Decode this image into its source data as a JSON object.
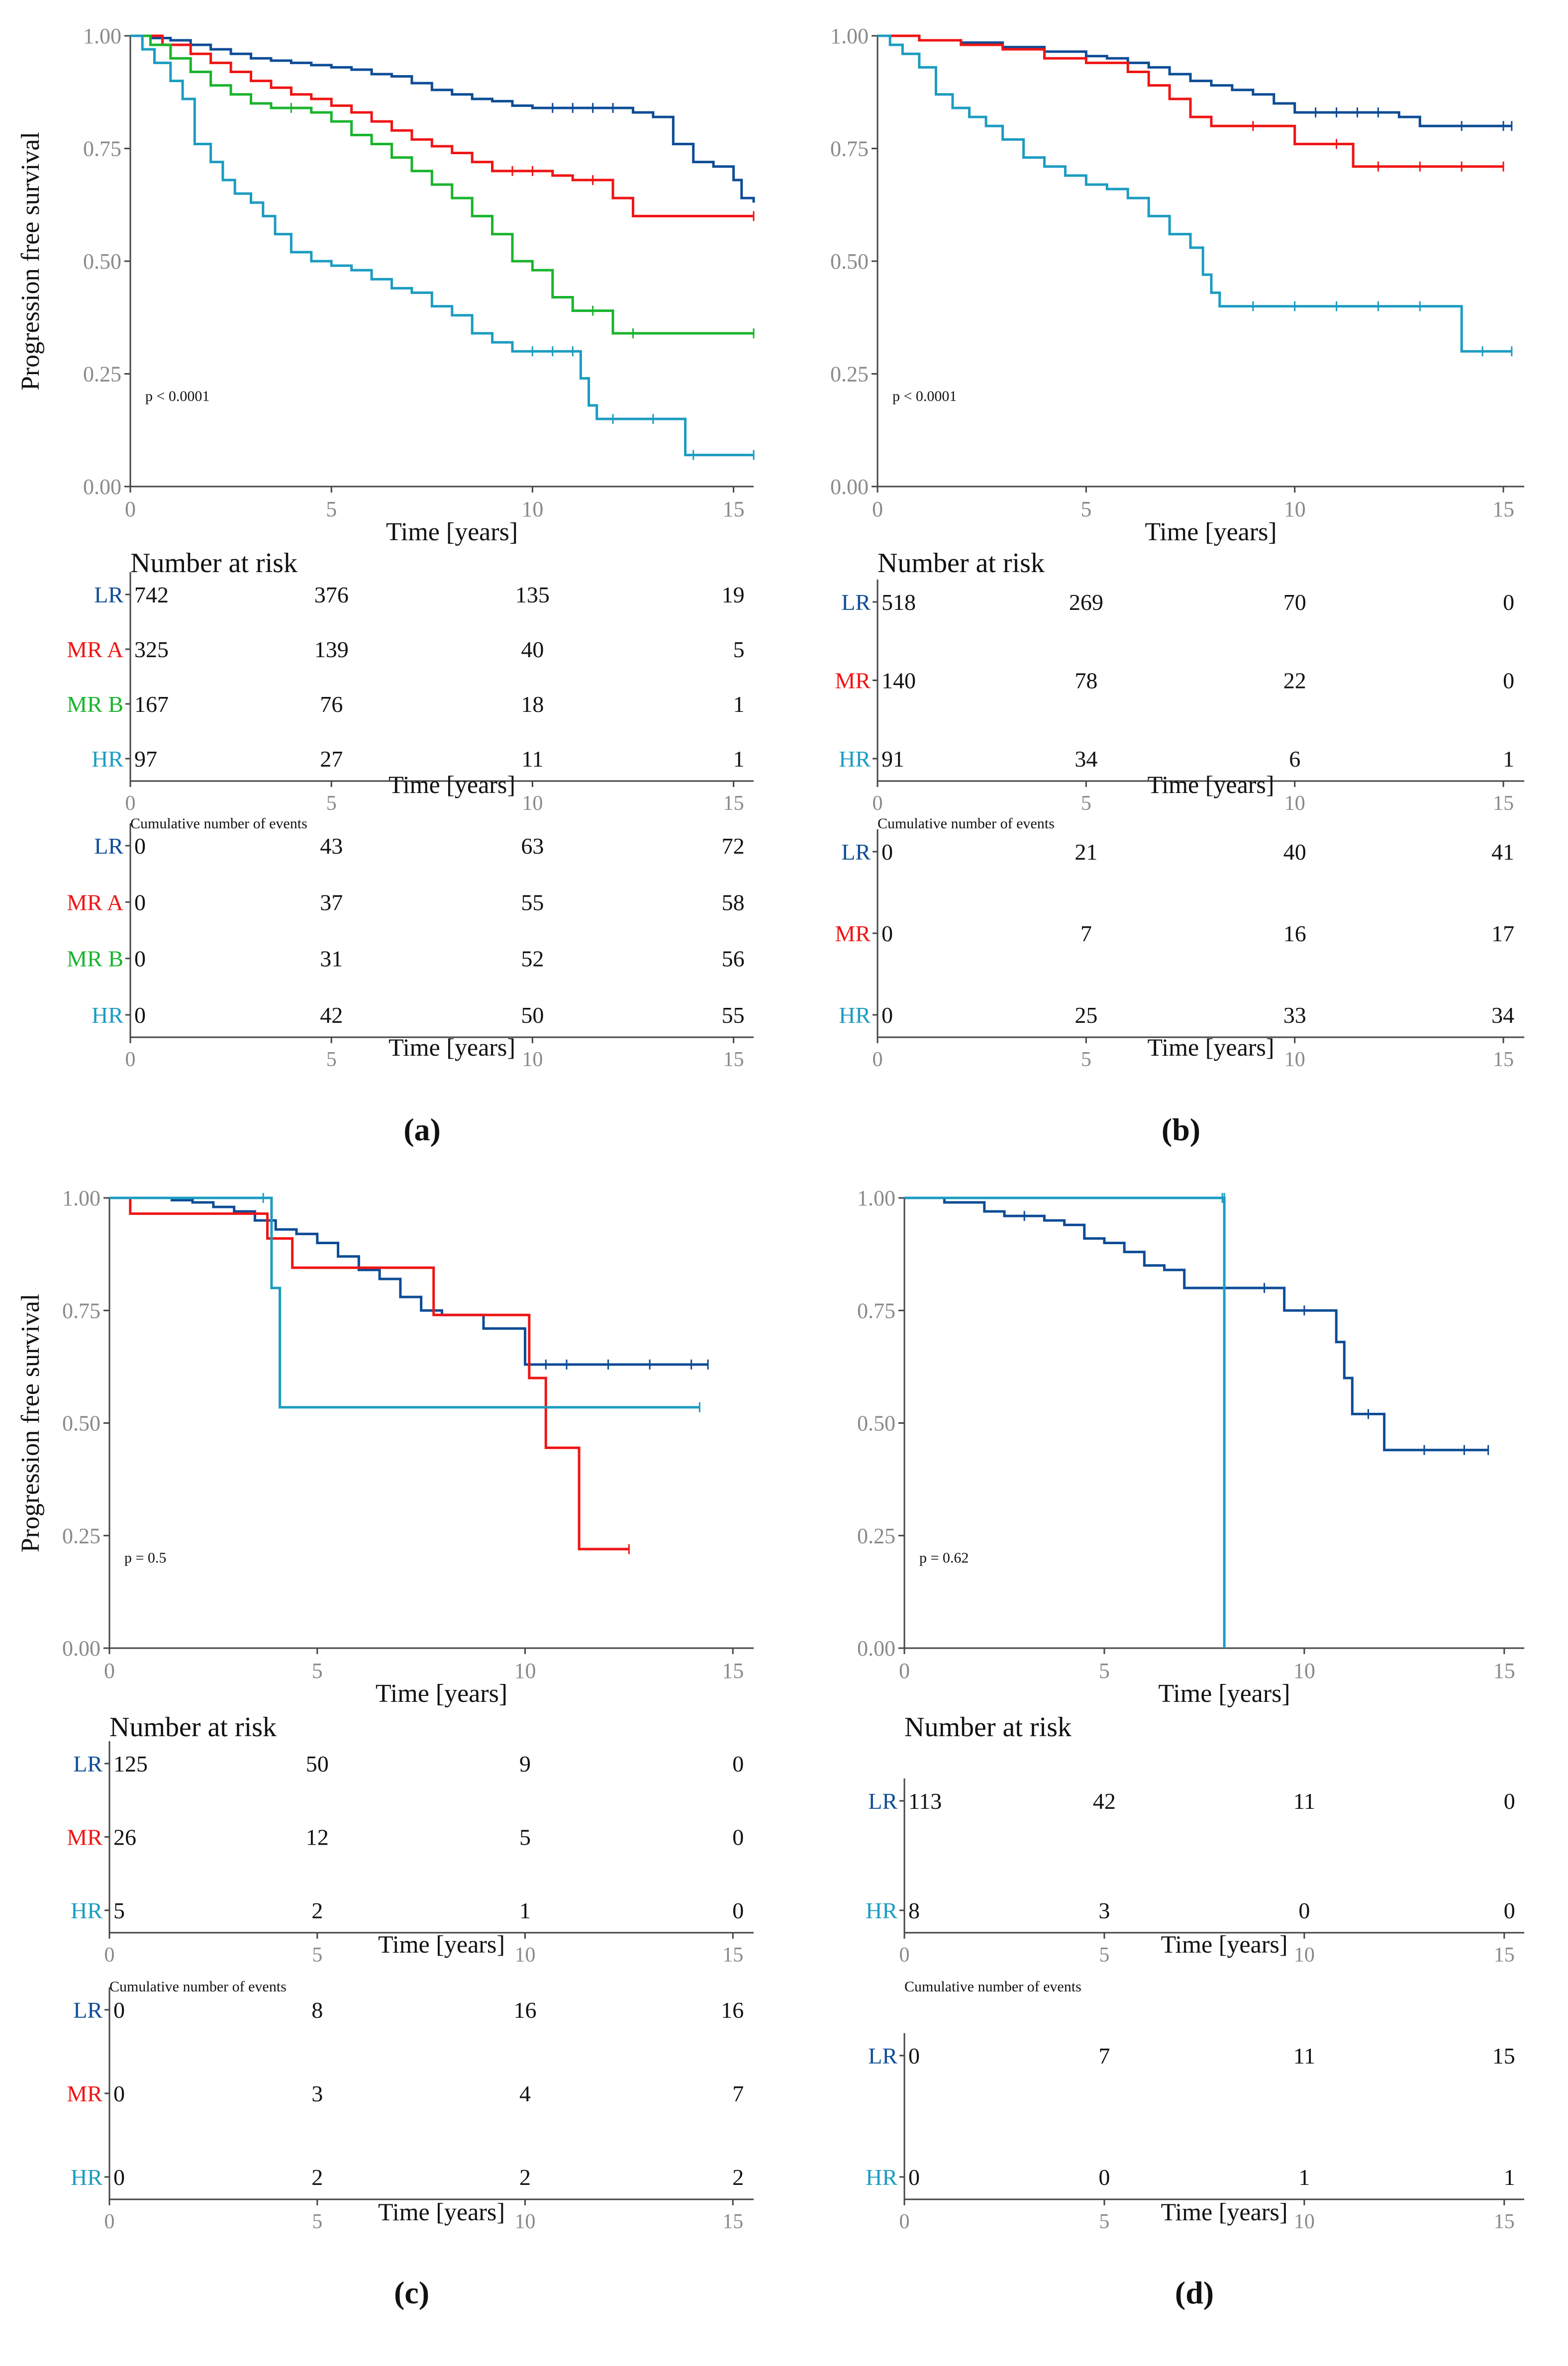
{
  "colors": {
    "LR": "#0d4c96",
    "MR": "#f01414",
    "MR A": "#f01414",
    "MR B": "#19b42d",
    "HR": "#1b9cc1",
    "axis": "#444444",
    "tick_label": "#8a8a8a",
    "text": "#111111"
  },
  "common": {
    "ylabel": "Progression free survival",
    "xlabel": "Time [years]",
    "risk_title": "Number at risk",
    "events_title": "Cumulative number of events",
    "x_ticks": [
      "0",
      "5",
      "10",
      "15"
    ],
    "y_ticks": [
      "0.00",
      "0.25",
      "0.50",
      "0.75",
      "1.00"
    ]
  },
  "chart_data": [
    {
      "type": "line",
      "subtype": "kaplan-meier",
      "panel_label": "(a)",
      "pvalue": "p < 0.0001",
      "xlim": [
        0,
        15.5
      ],
      "ylim": [
        0,
        1
      ],
      "series": [
        {
          "name": "LR",
          "x": [
            0,
            0.5,
            1,
            1.5,
            2,
            2.5,
            3,
            3.5,
            4,
            4.5,
            5,
            5.5,
            6,
            6.5,
            7,
            7.5,
            8,
            8.5,
            9,
            9.5,
            10,
            10.5,
            11,
            11.5,
            12,
            12.5,
            13,
            13.5,
            14,
            14.5,
            15,
            15.2,
            15.5
          ],
          "y": [
            1.0,
            0.995,
            0.99,
            0.98,
            0.97,
            0.96,
            0.95,
            0.945,
            0.94,
            0.935,
            0.93,
            0.925,
            0.915,
            0.91,
            0.895,
            0.88,
            0.87,
            0.86,
            0.855,
            0.845,
            0.84,
            0.84,
            0.84,
            0.84,
            0.84,
            0.83,
            0.82,
            0.76,
            0.72,
            0.71,
            0.68,
            0.64,
            0.63
          ]
        },
        {
          "name": "MR A",
          "x": [
            0,
            0.8,
            1.5,
            2,
            2.5,
            3,
            3.5,
            4,
            4.5,
            5,
            5.5,
            6,
            6.5,
            7,
            7.5,
            8,
            8.5,
            9,
            9.5,
            10,
            10.5,
            11,
            11.5,
            12,
            12.5,
            15.5
          ],
          "y": [
            1.0,
            0.98,
            0.96,
            0.94,
            0.92,
            0.9,
            0.885,
            0.87,
            0.86,
            0.845,
            0.83,
            0.81,
            0.79,
            0.77,
            0.755,
            0.74,
            0.72,
            0.7,
            0.7,
            0.7,
            0.69,
            0.68,
            0.68,
            0.64,
            0.6,
            0.6
          ]
        },
        {
          "name": "MR B",
          "x": [
            0,
            0.5,
            1,
            1.5,
            2,
            2.5,
            3,
            3.5,
            4,
            4.5,
            5,
            5.5,
            6,
            6.5,
            7,
            7.5,
            8,
            8.5,
            9,
            9.5,
            10,
            10.5,
            11,
            11.5,
            12,
            12.5,
            15.5
          ],
          "y": [
            1.0,
            0.98,
            0.95,
            0.92,
            0.89,
            0.87,
            0.85,
            0.84,
            0.84,
            0.83,
            0.81,
            0.78,
            0.76,
            0.73,
            0.7,
            0.67,
            0.64,
            0.6,
            0.56,
            0.5,
            0.48,
            0.42,
            0.39,
            0.39,
            0.34,
            0.34,
            0.34
          ]
        },
        {
          "name": "HR",
          "x": [
            0,
            0.3,
            0.6,
            1,
            1.3,
            1.6,
            2,
            2.3,
            2.6,
            3,
            3.3,
            3.6,
            4,
            4.5,
            5,
            5.5,
            6,
            6.5,
            7,
            7.5,
            8,
            8.5,
            9,
            9.5,
            10,
            10.5,
            11,
            11.2,
            11.4,
            11.6,
            12,
            13,
            13.8,
            14,
            15.5
          ],
          "y": [
            1.0,
            0.97,
            0.94,
            0.9,
            0.86,
            0.76,
            0.72,
            0.68,
            0.65,
            0.63,
            0.6,
            0.56,
            0.52,
            0.5,
            0.49,
            0.48,
            0.46,
            0.44,
            0.43,
            0.4,
            0.38,
            0.34,
            0.32,
            0.3,
            0.3,
            0.3,
            0.3,
            0.24,
            0.18,
            0.15,
            0.15,
            0.15,
            0.07,
            0.07,
            0.07
          ]
        }
      ],
      "risk_table": {
        "x": [
          0,
          5,
          10,
          15
        ],
        "rows": [
          {
            "group": "LR",
            "values": [
              "742",
              "376",
              "135",
              "19"
            ]
          },
          {
            "group": "MR A",
            "values": [
              "325",
              "139",
              "40",
              "5"
            ]
          },
          {
            "group": "MR B",
            "values": [
              "167",
              "76",
              "18",
              "1"
            ]
          },
          {
            "group": "HR",
            "values": [
              "97",
              "27",
              "11",
              "1"
            ]
          }
        ]
      },
      "events_table": {
        "x": [
          0,
          5,
          10,
          15
        ],
        "rows": [
          {
            "group": "LR",
            "values": [
              "0",
              "43",
              "63",
              "72"
            ]
          },
          {
            "group": "MR A",
            "values": [
              "0",
              "37",
              "55",
              "58"
            ]
          },
          {
            "group": "MR B",
            "values": [
              "0",
              "31",
              "52",
              "56"
            ]
          },
          {
            "group": "HR",
            "values": [
              "0",
              "42",
              "50",
              "55"
            ]
          }
        ]
      }
    },
    {
      "type": "line",
      "subtype": "kaplan-meier",
      "panel_label": "(b)",
      "pvalue": "p < 0.0001",
      "xlim": [
        0,
        15.5
      ],
      "ylim": [
        0,
        1
      ],
      "series": [
        {
          "name": "LR",
          "x": [
            0,
            1,
            2,
            3,
            4,
            5,
            5.5,
            6,
            6.5,
            7,
            7.5,
            8,
            8.5,
            9,
            9.5,
            10,
            10.5,
            11,
            11.5,
            12,
            12.5,
            13,
            14,
            15,
            15.2
          ],
          "y": [
            1.0,
            0.99,
            0.985,
            0.975,
            0.965,
            0.955,
            0.95,
            0.94,
            0.93,
            0.915,
            0.9,
            0.89,
            0.88,
            0.87,
            0.85,
            0.83,
            0.83,
            0.83,
            0.83,
            0.83,
            0.82,
            0.8,
            0.8,
            0.8,
            0.8
          ]
        },
        {
          "name": "MR",
          "x": [
            0,
            1,
            2,
            3,
            4,
            5,
            6,
            6.5,
            7,
            7.5,
            8,
            9,
            10,
            11,
            11.4,
            12,
            13,
            14,
            15
          ],
          "y": [
            1.0,
            0.99,
            0.98,
            0.97,
            0.95,
            0.94,
            0.92,
            0.89,
            0.86,
            0.82,
            0.8,
            0.8,
            0.76,
            0.76,
            0.71,
            0.71,
            0.71,
            0.71,
            0.71
          ]
        },
        {
          "name": "HR",
          "x": [
            0,
            0.3,
            0.6,
            1,
            1.4,
            1.8,
            2.2,
            2.6,
            3,
            3.5,
            4,
            4.5,
            5,
            5.5,
            6,
            6.5,
            7,
            7.5,
            7.8,
            8,
            8.2,
            9,
            10,
            11,
            12,
            13,
            14,
            14.5,
            15.2
          ],
          "y": [
            1.0,
            0.98,
            0.96,
            0.93,
            0.87,
            0.84,
            0.82,
            0.8,
            0.77,
            0.73,
            0.71,
            0.69,
            0.67,
            0.66,
            0.64,
            0.6,
            0.56,
            0.53,
            0.47,
            0.43,
            0.4,
            0.4,
            0.4,
            0.4,
            0.4,
            0.4,
            0.3,
            0.3,
            0.3
          ]
        }
      ],
      "risk_table": {
        "x": [
          0,
          5,
          10,
          15
        ],
        "rows": [
          {
            "group": "LR",
            "values": [
              "518",
              "269",
              "70",
              "0"
            ]
          },
          {
            "group": "MR",
            "values": [
              "140",
              "78",
              "22",
              "0"
            ]
          },
          {
            "group": "HR",
            "values": [
              "91",
              "34",
              "6",
              "1"
            ]
          }
        ]
      },
      "events_table": {
        "x": [
          0,
          5,
          10,
          15
        ],
        "rows": [
          {
            "group": "LR",
            "values": [
              "0",
              "21",
              "40",
              "41"
            ]
          },
          {
            "group": "MR",
            "values": [
              "0",
              "7",
              "16",
              "17"
            ]
          },
          {
            "group": "HR",
            "values": [
              "0",
              "25",
              "33",
              "34"
            ]
          }
        ]
      }
    },
    {
      "type": "line",
      "subtype": "kaplan-meier",
      "panel_label": "(c)",
      "pvalue": "p = 0.5",
      "xlim": [
        0,
        15.5
      ],
      "ylim": [
        0,
        1
      ],
      "series": [
        {
          "name": "LR",
          "x": [
            0,
            1.5,
            2,
            2.5,
            3,
            3.5,
            4,
            4.5,
            5,
            5.5,
            6,
            6.5,
            7,
            7.5,
            8,
            9,
            10,
            10.5,
            11,
            12,
            13,
            14,
            14.4
          ],
          "y": [
            1.0,
            0.995,
            0.99,
            0.98,
            0.97,
            0.95,
            0.93,
            0.92,
            0.9,
            0.87,
            0.84,
            0.82,
            0.78,
            0.75,
            0.74,
            0.71,
            0.63,
            0.63,
            0.63,
            0.63,
            0.63,
            0.63,
            0.63
          ]
        },
        {
          "name": "MR",
          "x": [
            0,
            0.5,
            3.8,
            4.4,
            7.8,
            10.1,
            10.5,
            11.3,
            12.5
          ],
          "y": [
            1.0,
            0.965,
            0.91,
            0.845,
            0.74,
            0.6,
            0.445,
            0.22,
            0.22
          ]
        },
        {
          "name": "HR",
          "x": [
            0,
            3.7,
            3.9,
            4.1,
            14.2
          ],
          "y": [
            1.0,
            1.0,
            0.8,
            0.535,
            0.535
          ]
        }
      ],
      "risk_table": {
        "x": [
          0,
          5,
          10,
          15
        ],
        "rows": [
          {
            "group": "LR",
            "values": [
              "125",
              "50",
              "9",
              "0"
            ]
          },
          {
            "group": "MR",
            "values": [
              "26",
              "12",
              "5",
              "0"
            ]
          },
          {
            "group": "HR",
            "values": [
              "5",
              "2",
              "1",
              "0"
            ]
          }
        ]
      },
      "events_table": {
        "x": [
          0,
          5,
          10,
          15
        ],
        "rows": [
          {
            "group": "LR",
            "values": [
              "0",
              "8",
              "16",
              "16"
            ]
          },
          {
            "group": "MR",
            "values": [
              "0",
              "3",
              "4",
              "7"
            ]
          },
          {
            "group": "HR",
            "values": [
              "0",
              "2",
              "2",
              "2"
            ]
          }
        ]
      }
    },
    {
      "type": "line",
      "subtype": "kaplan-meier",
      "panel_label": "(d)",
      "pvalue": "p = 0.62",
      "xlim": [
        0,
        15.5
      ],
      "ylim": [
        0,
        1
      ],
      "series": [
        {
          "name": "LR",
          "x": [
            0,
            1,
            2,
            2.5,
            3,
            3.5,
            4,
            4.5,
            5,
            5.5,
            6,
            6.5,
            7,
            9,
            9.5,
            10,
            10.8,
            11,
            11.2,
            11.6,
            12,
            13,
            14,
            14.6
          ],
          "y": [
            1.0,
            0.99,
            0.97,
            0.96,
            0.96,
            0.95,
            0.94,
            0.91,
            0.9,
            0.88,
            0.85,
            0.84,
            0.8,
            0.8,
            0.75,
            0.75,
            0.68,
            0.6,
            0.52,
            0.52,
            0.44,
            0.44,
            0.44,
            0.44
          ]
        },
        {
          "name": "HR",
          "x": [
            0,
            7.95,
            8.0,
            8.0
          ],
          "y": [
            1.0,
            1.0,
            1.0,
            0.0
          ]
        }
      ],
      "risk_table": {
        "x": [
          0,
          5,
          10,
          15
        ],
        "rows": [
          {
            "group": "LR",
            "values": [
              "113",
              "42",
              "11",
              "0"
            ]
          },
          {
            "group": "HR",
            "values": [
              "8",
              "3",
              "0",
              "0"
            ]
          }
        ]
      },
      "events_table": {
        "x": [
          0,
          5,
          10,
          15
        ],
        "rows": [
          {
            "group": "LR",
            "values": [
              "0",
              "7",
              "11",
              "15"
            ]
          },
          {
            "group": "HR",
            "values": [
              "0",
              "0",
              "1",
              "1"
            ]
          }
        ]
      }
    }
  ]
}
